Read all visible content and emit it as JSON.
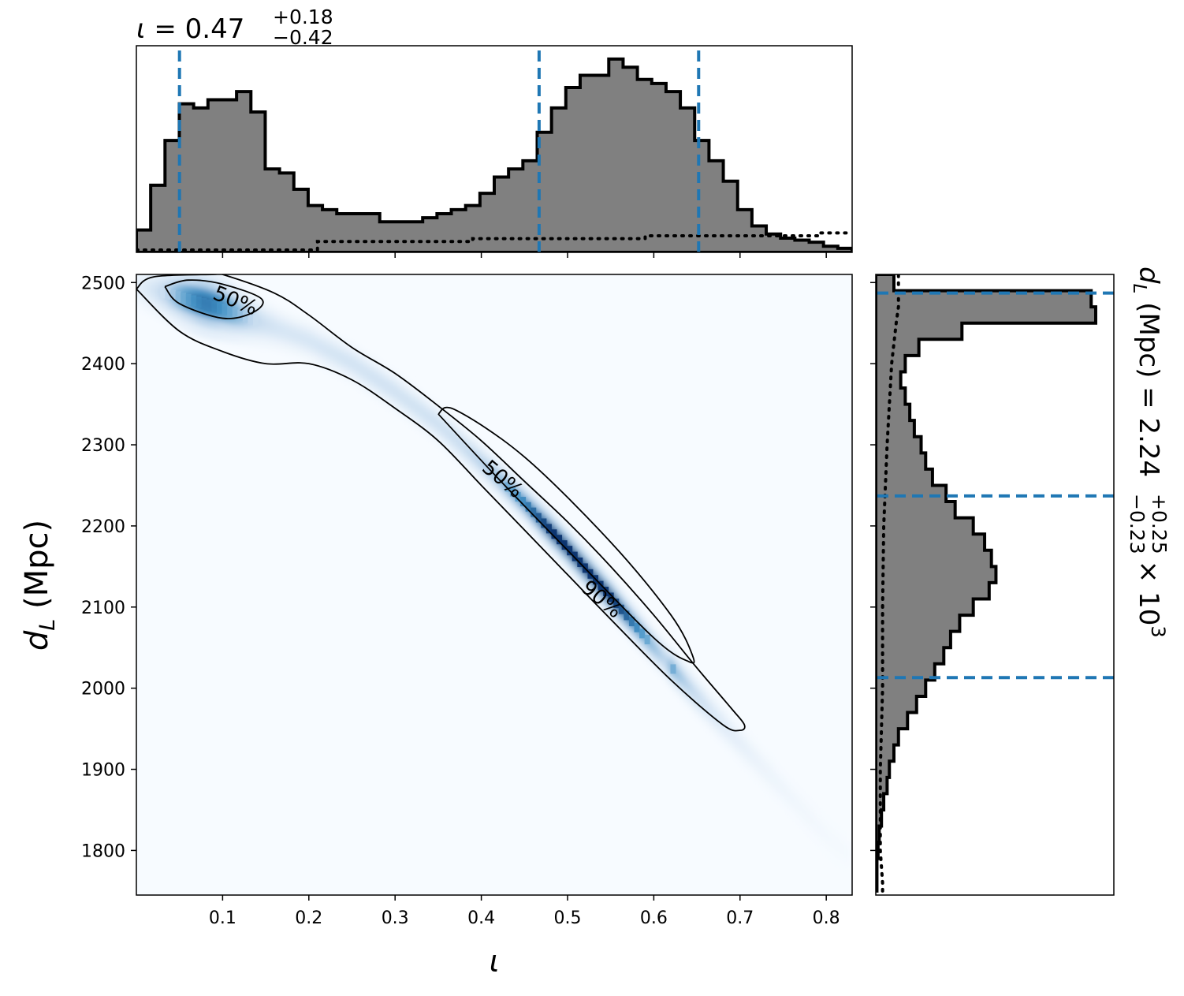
{
  "chart_data": [
    {
      "panel": "top-marginal",
      "type": "histogram",
      "title_param": "ι",
      "title_value": "0.47",
      "title_plus": "+0.18",
      "title_minus": "−0.42",
      "title_eq": " = ",
      "xlim": [
        0.0,
        0.83
      ],
      "bin_edges": [
        0.0,
        0.0166,
        0.0332,
        0.0498,
        0.0664,
        0.083,
        0.0996,
        0.1162,
        0.1328,
        0.1494,
        0.166,
        0.1826,
        0.1992,
        0.2158,
        0.2324,
        0.249,
        0.2656,
        0.2822,
        0.2988,
        0.3154,
        0.332,
        0.3486,
        0.3652,
        0.3818,
        0.3984,
        0.415,
        0.4316,
        0.4482,
        0.4648,
        0.4814,
        0.498,
        0.5146,
        0.5312,
        0.5478,
        0.5644,
        0.581,
        0.5976,
        0.6142,
        0.6308,
        0.6474,
        0.664,
        0.6806,
        0.6972,
        0.7138,
        0.7304,
        0.747,
        0.7636,
        0.7802,
        0.7968,
        0.8134,
        0.83
      ],
      "counts": [
        0.11,
        0.33,
        0.55,
        0.73,
        0.71,
        0.75,
        0.75,
        0.79,
        0.69,
        0.41,
        0.39,
        0.31,
        0.23,
        0.21,
        0.19,
        0.19,
        0.19,
        0.15,
        0.15,
        0.15,
        0.17,
        0.19,
        0.21,
        0.23,
        0.29,
        0.37,
        0.41,
        0.45,
        0.59,
        0.71,
        0.81,
        0.87,
        0.87,
        0.95,
        0.91,
        0.85,
        0.83,
        0.79,
        0.71,
        0.55,
        0.45,
        0.35,
        0.21,
        0.13,
        0.09,
        0.07,
        0.06,
        0.05,
        0.03,
        0.02
      ],
      "prior_x": [
        0.0,
        0.21,
        0.21,
        0.39,
        0.39,
        0.59,
        0.59,
        0.79,
        0.79,
        0.83
      ],
      "prior_y": [
        0.0,
        0.0,
        0.06,
        0.06,
        0.08,
        0.08,
        0.1,
        0.1,
        0.12,
        0.12
      ],
      "quantiles": [
        0.05,
        0.467,
        0.652
      ],
      "x_ticks": [
        0.1,
        0.2,
        0.3,
        0.4,
        0.5,
        0.6,
        0.7,
        0.8
      ],
      "ylim": [
        0,
        1.0
      ]
    },
    {
      "panel": "joint",
      "type": "heatmap",
      "xlabel": "ι",
      "ylabel_sym": "d",
      "ylabel_sub": "L",
      "ylabel_unit": " (Mpc)",
      "xlim": [
        0.0,
        0.83
      ],
      "ylim": [
        1745,
        2510
      ],
      "x_ticks": [
        0.1,
        0.2,
        0.3,
        0.4,
        0.5,
        0.6,
        0.7,
        0.8
      ],
      "x_tick_labels": [
        "0.1",
        "0.2",
        "0.3",
        "0.4",
        "0.5",
        "0.6",
        "0.7",
        "0.8"
      ],
      "y_ticks": [
        1800,
        1900,
        2000,
        2100,
        2200,
        2300,
        2400,
        2500
      ],
      "y_tick_labels": [
        "1800",
        "1900",
        "2000",
        "2100",
        "2200",
        "2300",
        "2400",
        "2500"
      ],
      "ridge_x": [
        0.0,
        0.05,
        0.1,
        0.15,
        0.2,
        0.25,
        0.3,
        0.35,
        0.4,
        0.45,
        0.5,
        0.55,
        0.6,
        0.65,
        0.7,
        0.75,
        0.8,
        0.83
      ],
      "ridge_y": [
        2495,
        2482,
        2468,
        2448,
        2428,
        2400,
        2365,
        2325,
        2278,
        2228,
        2172,
        2112,
        2050,
        1990,
        1932,
        1875,
        1818,
        1790
      ],
      "contour_labels": [
        {
          "text": "50%",
          "x": 0.115,
          "y": 2478,
          "angle": 22
        },
        {
          "text": "50%",
          "x": 0.425,
          "y": 2258,
          "angle": 40
        },
        {
          "text": "90%",
          "x": 0.54,
          "y": 2110,
          "angle": 40
        }
      ],
      "contour50_a": [
        [
          0.033,
          2495
        ],
        [
          0.06,
          2503
        ],
        [
          0.1,
          2498
        ],
        [
          0.145,
          2480
        ],
        [
          0.135,
          2463
        ],
        [
          0.1,
          2456
        ],
        [
          0.05,
          2474
        ],
        [
          0.033,
          2495
        ]
      ],
      "contour50_b": [
        [
          0.35,
          2338
        ],
        [
          0.37,
          2343
        ],
        [
          0.45,
          2285
        ],
        [
          0.55,
          2180
        ],
        [
          0.62,
          2090
        ],
        [
          0.645,
          2040
        ],
        [
          0.64,
          2033
        ],
        [
          0.6,
          2062
        ],
        [
          0.5,
          2170
        ],
        [
          0.42,
          2258
        ],
        [
          0.35,
          2338
        ]
      ],
      "contour90": [
        [
          0.0,
          2492
        ],
        [
          0.02,
          2507
        ],
        [
          0.09,
          2510
        ],
        [
          0.1,
          2510
        ],
        [
          0.16,
          2487
        ],
        [
          0.2,
          2460
        ],
        [
          0.25,
          2420
        ],
        [
          0.3,
          2388
        ],
        [
          0.35,
          2348
        ],
        [
          0.4,
          2305
        ],
        [
          0.45,
          2255
        ],
        [
          0.5,
          2205
        ],
        [
          0.55,
          2150
        ],
        [
          0.6,
          2090
        ],
        [
          0.65,
          2025
        ],
        [
          0.69,
          1975
        ],
        [
          0.705,
          1955
        ],
        [
          0.7,
          1948
        ],
        [
          0.68,
          1955
        ],
        [
          0.62,
          2010
        ],
        [
          0.55,
          2085
        ],
        [
          0.5,
          2140
        ],
        [
          0.45,
          2195
        ],
        [
          0.4,
          2250
        ],
        [
          0.35,
          2305
        ],
        [
          0.3,
          2345
        ],
        [
          0.25,
          2380
        ],
        [
          0.2,
          2400
        ],
        [
          0.15,
          2400
        ],
        [
          0.1,
          2415
        ],
        [
          0.05,
          2440
        ],
        [
          0.0,
          2492
        ]
      ]
    },
    {
      "panel": "right-marginal",
      "type": "histogram",
      "label_sym": "d",
      "label_sub": "L",
      "label_text": " (Mpc) = 2.24",
      "label_plus": "+0.25",
      "label_minus": "−0.23",
      "label_times": " × 10",
      "label_exp": "3",
      "ylim": [
        1745,
        2510
      ],
      "y_ticks": [
        1800,
        1900,
        2000,
        2100,
        2200,
        2300,
        2400,
        2500
      ],
      "bin_edges": [
        1750,
        1770,
        1790,
        1810,
        1830,
        1850,
        1870,
        1890,
        1910,
        1930,
        1950,
        1970,
        1990,
        2010,
        2030,
        2050,
        2070,
        2090,
        2110,
        2130,
        2150,
        2170,
        2190,
        2210,
        2230,
        2250,
        2270,
        2290,
        2310,
        2330,
        2350,
        2370,
        2390,
        2410,
        2430,
        2450,
        2470,
        2490,
        2510
      ],
      "counts": [
        0.005,
        0.005,
        0.01,
        0.015,
        0.025,
        0.035,
        0.05,
        0.06,
        0.08,
        0.1,
        0.14,
        0.18,
        0.22,
        0.26,
        0.3,
        0.33,
        0.37,
        0.43,
        0.5,
        0.53,
        0.51,
        0.48,
        0.43,
        0.35,
        0.31,
        0.25,
        0.22,
        0.2,
        0.17,
        0.15,
        0.13,
        0.11,
        0.13,
        0.19,
        0.38,
        0.97,
        0.95,
        0.08
      ],
      "prior_d": [
        1750,
        1760,
        1800,
        1900,
        2000,
        2100,
        2200,
        2300,
        2400,
        2450,
        2470,
        2510
      ],
      "prior_w": [
        0.03,
        0.03,
        0.02,
        0.02,
        0.03,
        0.03,
        0.035,
        0.05,
        0.07,
        0.09,
        0.1,
        0.1
      ],
      "quantiles": [
        2013,
        2237,
        2487
      ],
      "xlim": [
        0,
        1.05
      ]
    }
  ],
  "colors": {
    "hist_fill": "#808080",
    "quantile": "#1f77b4",
    "heat_low": "#f7fbff",
    "heat_high": "#08306b"
  }
}
